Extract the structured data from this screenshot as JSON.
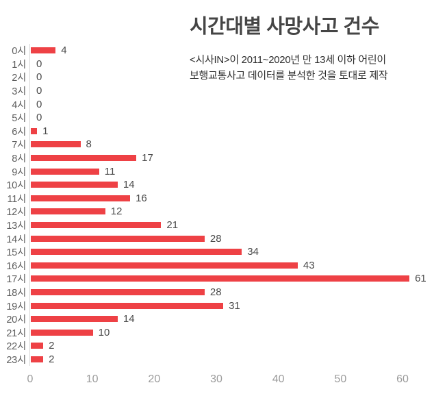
{
  "header": {
    "title": "시간대별 사망사고 건수",
    "subtitle_line1": "<시사IN>이 2011~2020년 만 13세 이하 어린이",
    "subtitle_line2": "보행교통사고 데이터를 분석한 것을 토대로 제작"
  },
  "chart_data": {
    "type": "bar",
    "orientation": "horizontal",
    "title": "시간대별 사망사고 건수",
    "categories": [
      "0시",
      "1시",
      "2시",
      "3시",
      "4시",
      "5시",
      "6시",
      "7시",
      "8시",
      "9시",
      "10시",
      "11시",
      "12시",
      "13시",
      "14시",
      "15시",
      "16시",
      "17시",
      "18시",
      "19시",
      "20시",
      "21시",
      "22시",
      "23시"
    ],
    "values": [
      4,
      0,
      0,
      0,
      0,
      0,
      1,
      8,
      17,
      11,
      14,
      16,
      12,
      21,
      28,
      34,
      43,
      61,
      28,
      31,
      14,
      10,
      2,
      2
    ],
    "xlabel": "",
    "ylabel": "",
    "xticks": [
      0,
      10,
      20,
      30,
      40,
      50,
      60
    ],
    "xlim": [
      0,
      65
    ],
    "grid": false,
    "legend": false,
    "bar_color": "#ee4145",
    "axis_line_color": "#d8d8d8",
    "value_label_color": "#4a4a4a",
    "tick_label_color": "#9b9b9b"
  }
}
